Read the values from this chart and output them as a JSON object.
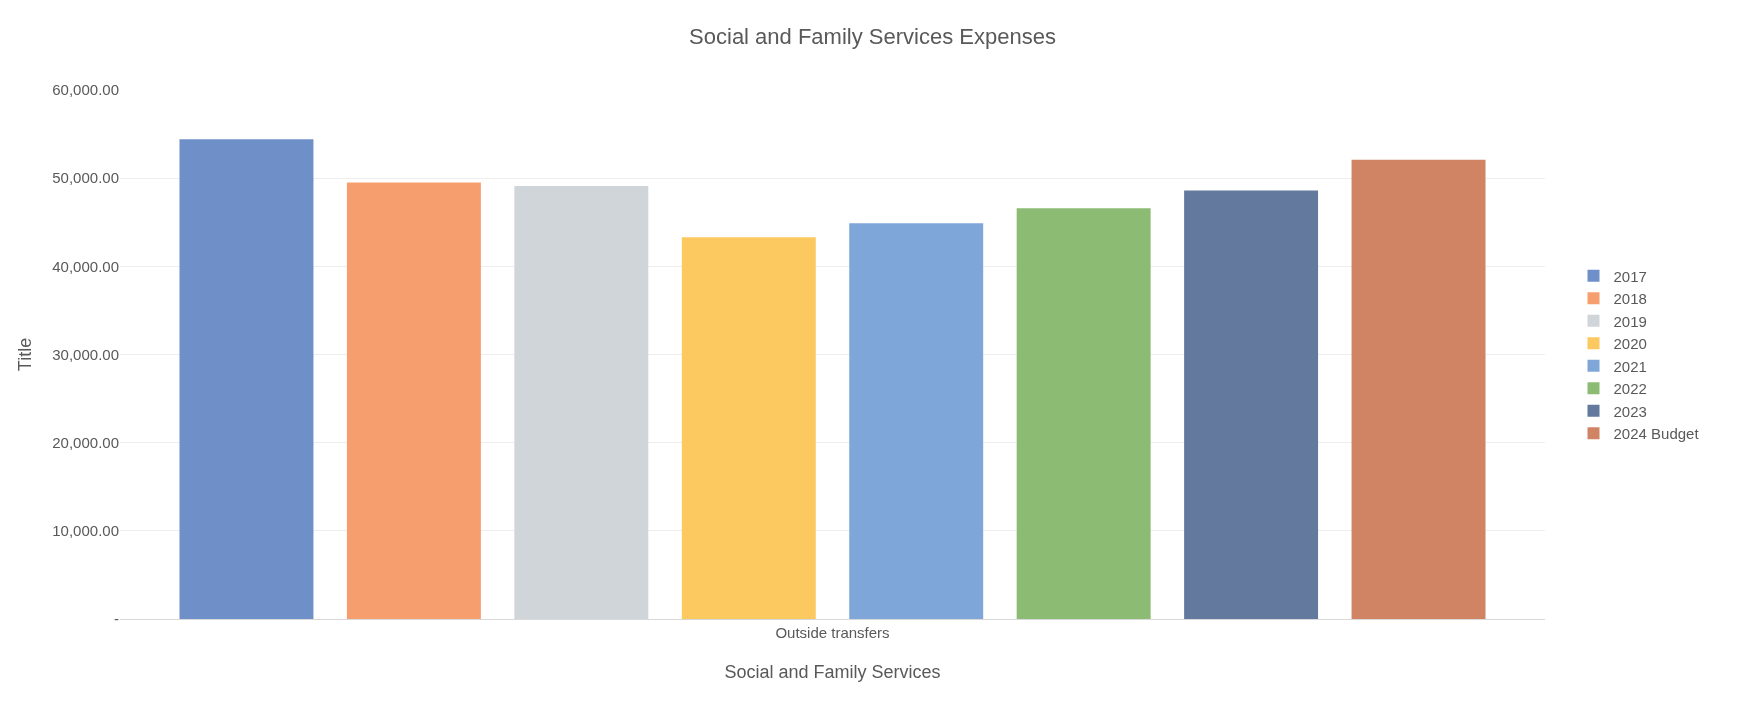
{
  "chart_data": {
    "type": "bar",
    "title": "Social and Family Services Expenses",
    "xlabel": "Social and Family Services",
    "ylabel": "Title",
    "categories": [
      "Outside transfers"
    ],
    "series": [
      {
        "name": "2017",
        "color": "#6f8fc8",
        "values": [
          54400
        ]
      },
      {
        "name": "2018",
        "color": "#f79e6e",
        "values": [
          49500
        ]
      },
      {
        "name": "2019",
        "color": "#cfd5d8",
        "values": [
          49100
        ]
      },
      {
        "name": "2020",
        "color": "#fcc860",
        "values": [
          43300
        ]
      },
      {
        "name": "2021",
        "color": "#7fa6d8",
        "values": [
          44900
        ]
      },
      {
        "name": "2022",
        "color": "#8cbb74",
        "values": [
          46600
        ]
      },
      {
        "name": "2023",
        "color": "#63799d",
        "values": [
          48600
        ]
      },
      {
        "name": "2024 Budget",
        "color": "#d08463",
        "values": [
          52100
        ]
      }
    ],
    "ylim": [
      0,
      60000
    ],
    "yticks": [
      {
        "value": 0,
        "label": "-"
      },
      {
        "value": 10000,
        "label": "10,000.00"
      },
      {
        "value": 20000,
        "label": "20,000.00"
      },
      {
        "value": 30000,
        "label": "30,000.00"
      },
      {
        "value": 40000,
        "label": "40,000.00"
      },
      {
        "value": 50000,
        "label": "50,000.00"
      },
      {
        "value": 60000,
        "label": "60,000.00"
      }
    ],
    "grid": "y",
    "legend": "right"
  }
}
